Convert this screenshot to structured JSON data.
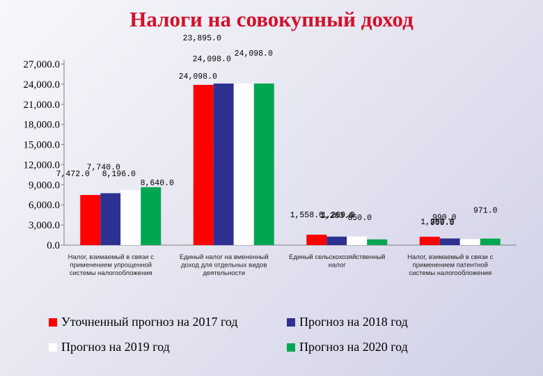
{
  "chart_data": {
    "type": "bar",
    "title": "Налоги на совокупный доход",
    "xlabel": "",
    "ylabel": "",
    "ylim": [
      0,
      27000
    ],
    "yticks": [
      "0.0",
      "3,000.0",
      "6,000.0",
      "9,000.0",
      "12,000.0",
      "15,000.0",
      "18,000.0",
      "21,000.0",
      "24,000.0",
      "27,000.0"
    ],
    "categories": [
      [
        "Налог, взимаемый в связи с",
        "применением упрощенной",
        "системы налогообложения"
      ],
      [
        "Единый налог на вмененный",
        "доход для отдельных видов",
        "деятельности"
      ],
      [
        "Единый сельскохозяйственный",
        "налог"
      ],
      [
        "Налог, взимаемый в связи с",
        "применением патентной",
        "системы налогообложения"
      ]
    ],
    "series": [
      {
        "name": "Уточненный прогноз на 2017 год",
        "color": "#ff0000",
        "values": [
          7472,
          23895,
          1558,
          1250
        ],
        "labels": [
          "7,472.0",
          "23,895.0",
          "1,558.0",
          "1,250.0"
        ]
      },
      {
        "name": "Прогноз на 2018 год",
        "color": "#2e3192",
        "values": [
          7740,
          24098,
          1263,
          990
        ],
        "labels": [
          "7,740.0",
          "24,098.0",
          "1,263.0",
          "990.0"
        ]
      },
      {
        "name": "Прогноз на 2019 год",
        "color": "#ffffff",
        "values": [
          8196,
          24098,
          1269,
          909
        ],
        "labels": [
          "8,196.0",
          "24,098.0",
          "1,269.0",
          "909.0"
        ]
      },
      {
        "name": "Прогноз на 2020 год",
        "color": "#00a651",
        "values": [
          8640,
          24098,
          850,
          971
        ],
        "labels": [
          "8,640.0",
          "24,098.0",
          "850.0",
          "971.0"
        ]
      }
    ],
    "grid": false,
    "legend_position": "bottom"
  }
}
